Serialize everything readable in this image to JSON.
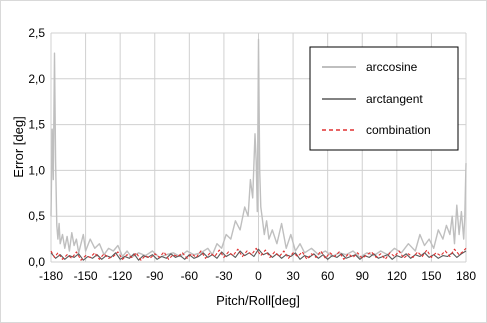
{
  "chart_data": {
    "type": "line",
    "xlabel": "Pitch/Roll[deg]",
    "ylabel": "Error [deg]",
    "xlim": [
      -180,
      180
    ],
    "ylim": [
      0,
      2.5
    ],
    "x_ticks": [
      -180,
      -150,
      -120,
      -90,
      -60,
      -30,
      0,
      30,
      60,
      90,
      120,
      150,
      180
    ],
    "x_tick_labels": [
      "-180",
      "-150",
      "-120",
      "-90",
      "-60",
      "-30",
      "0",
      "30",
      "60",
      "90",
      "120",
      "150",
      "180"
    ],
    "y_ticks": [
      0,
      0.5,
      1,
      1.5,
      2,
      2.5
    ],
    "y_tick_labels": [
      "0,0",
      "0,5",
      "1,0",
      "1,5",
      "2,0",
      "2,5"
    ],
    "grid": true,
    "legend_position": "top-right",
    "series": [
      {
        "name": "arccosine",
        "color": "#bfbfbf",
        "style": "solid",
        "x": [
          -180,
          -179,
          -178,
          -177,
          -176,
          -175,
          -174,
          -173,
          -172,
          -170,
          -168,
          -166,
          -164,
          -162,
          -160,
          -158,
          -156,
          -154,
          -152,
          -150,
          -146,
          -142,
          -138,
          -134,
          -130,
          -126,
          -122,
          -118,
          -114,
          -110,
          -104,
          -98,
          -92,
          -86,
          -80,
          -74,
          -68,
          -62,
          -56,
          -50,
          -44,
          -40,
          -36,
          -32,
          -28,
          -24,
          -20,
          -16,
          -12,
          -9,
          -7,
          -5,
          -3,
          -2,
          -1,
          0,
          1,
          2,
          3,
          5,
          7,
          9,
          12,
          16,
          20,
          24,
          28,
          32,
          36,
          40,
          46,
          52,
          58,
          64,
          70,
          76,
          82,
          88,
          94,
          100,
          106,
          112,
          118,
          124,
          130,
          136,
          140,
          144,
          148,
          152,
          156,
          160,
          163,
          166,
          168,
          170,
          172,
          174,
          176,
          178,
          179,
          180
        ],
        "y": [
          0.5,
          1.45,
          0.9,
          2.28,
          1.1,
          0.4,
          0.25,
          0.42,
          0.2,
          0.3,
          0.15,
          0.28,
          0.12,
          0.32,
          0.18,
          0.25,
          0.1,
          0.2,
          0.3,
          0.12,
          0.25,
          0.15,
          0.2,
          0.08,
          0.15,
          0.12,
          0.18,
          0.06,
          0.12,
          0.05,
          0.1,
          0.07,
          0.12,
          0.05,
          0.08,
          0.1,
          0.06,
          0.12,
          0.08,
          0.1,
          0.15,
          0.08,
          0.2,
          0.15,
          0.3,
          0.25,
          0.45,
          0.35,
          0.6,
          0.5,
          0.9,
          0.7,
          1.4,
          1.1,
          0.55,
          2.43,
          1.0,
          0.6,
          0.5,
          0.3,
          0.45,
          0.25,
          0.35,
          0.2,
          0.42,
          0.15,
          0.3,
          0.12,
          0.2,
          0.1,
          0.15,
          0.08,
          0.12,
          0.06,
          0.1,
          0.08,
          0.12,
          0.05,
          0.1,
          0.07,
          0.12,
          0.08,
          0.15,
          0.1,
          0.2,
          0.12,
          0.3,
          0.18,
          0.25,
          0.15,
          0.35,
          0.25,
          0.4,
          0.3,
          0.5,
          0.2,
          0.62,
          0.3,
          0.55,
          0.25,
          0.5,
          1.08
        ]
      },
      {
        "name": "arctangent",
        "color": "#595959",
        "style": "solid",
        "x": [
          -180,
          -176,
          -172,
          -168,
          -164,
          -160,
          -156,
          -152,
          -148,
          -144,
          -140,
          -136,
          -132,
          -128,
          -124,
          -120,
          -116,
          -112,
          -108,
          -104,
          -100,
          -96,
          -92,
          -88,
          -84,
          -80,
          -76,
          -72,
          -68,
          -64,
          -60,
          -56,
          -52,
          -48,
          -44,
          -40,
          -36,
          -32,
          -28,
          -24,
          -20,
          -16,
          -12,
          -8,
          -4,
          0,
          4,
          8,
          12,
          16,
          20,
          24,
          28,
          32,
          36,
          40,
          44,
          48,
          52,
          56,
          60,
          64,
          68,
          72,
          76,
          80,
          84,
          88,
          92,
          96,
          100,
          104,
          108,
          112,
          116,
          120,
          124,
          128,
          132,
          136,
          140,
          144,
          148,
          152,
          156,
          160,
          164,
          168,
          172,
          176,
          180
        ],
        "y": [
          0.1,
          0.04,
          0.08,
          0.03,
          0.07,
          0.05,
          0.09,
          0.02,
          0.06,
          0.04,
          0.08,
          0.03,
          0.07,
          0.05,
          0.1,
          0.03,
          0.06,
          0.04,
          0.09,
          0.02,
          0.07,
          0.05,
          0.08,
          0.03,
          0.06,
          0.04,
          0.09,
          0.05,
          0.07,
          0.03,
          0.08,
          0.04,
          0.06,
          0.1,
          0.05,
          0.08,
          0.04,
          0.11,
          0.06,
          0.09,
          0.05,
          0.12,
          0.07,
          0.1,
          0.06,
          0.14,
          0.08,
          0.1,
          0.05,
          0.09,
          0.04,
          0.08,
          0.06,
          0.1,
          0.03,
          0.07,
          0.05,
          0.09,
          0.04,
          0.08,
          0.03,
          0.07,
          0.05,
          0.09,
          0.04,
          0.06,
          0.08,
          0.03,
          0.07,
          0.05,
          0.09,
          0.04,
          0.06,
          0.08,
          0.03,
          0.07,
          0.05,
          0.09,
          0.04,
          0.08,
          0.06,
          0.1,
          0.05,
          0.08,
          0.04,
          0.07,
          0.06,
          0.1,
          0.05,
          0.09,
          0.12
        ]
      },
      {
        "name": "combination",
        "color": "#e03030",
        "style": "dashed",
        "x": [
          -180,
          -177,
          -174,
          -170,
          -166,
          -162,
          -158,
          -154,
          -150,
          -146,
          -142,
          -138,
          -134,
          -130,
          -126,
          -122,
          -118,
          -114,
          -110,
          -106,
          -102,
          -98,
          -94,
          -90,
          -86,
          -82,
          -78,
          -74,
          -70,
          -66,
          -62,
          -58,
          -54,
          -50,
          -46,
          -42,
          -38,
          -34,
          -30,
          -26,
          -22,
          -18,
          -14,
          -10,
          -6,
          -2,
          2,
          6,
          10,
          14,
          18,
          22,
          26,
          30,
          34,
          38,
          42,
          46,
          50,
          54,
          58,
          62,
          66,
          70,
          74,
          78,
          82,
          86,
          90,
          94,
          98,
          102,
          106,
          110,
          114,
          118,
          122,
          126,
          130,
          134,
          138,
          142,
          146,
          150,
          154,
          158,
          162,
          166,
          170,
          174,
          177,
          180
        ],
        "y": [
          0.12,
          0.05,
          0.1,
          0.03,
          0.08,
          0.04,
          0.11,
          0.02,
          0.07,
          0.05,
          0.1,
          0.03,
          0.09,
          0.04,
          0.06,
          0.11,
          0.03,
          0.08,
          0.05,
          0.1,
          0.02,
          0.07,
          0.04,
          0.09,
          0.05,
          0.11,
          0.03,
          0.08,
          0.06,
          0.1,
          0.04,
          0.09,
          0.05,
          0.12,
          0.04,
          0.1,
          0.06,
          0.13,
          0.05,
          0.11,
          0.07,
          0.14,
          0.06,
          0.12,
          0.08,
          0.15,
          0.07,
          0.13,
          0.05,
          0.11,
          0.06,
          0.12,
          0.04,
          0.1,
          0.06,
          0.11,
          0.03,
          0.09,
          0.05,
          0.12,
          0.04,
          0.1,
          0.06,
          0.11,
          0.03,
          0.09,
          0.05,
          0.1,
          0.04,
          0.08,
          0.11,
          0.05,
          0.09,
          0.03,
          0.1,
          0.06,
          0.12,
          0.04,
          0.09,
          0.05,
          0.11,
          0.06,
          0.13,
          0.05,
          0.1,
          0.07,
          0.12,
          0.06,
          0.14,
          0.08,
          0.11,
          0.15
        ]
      }
    ]
  }
}
